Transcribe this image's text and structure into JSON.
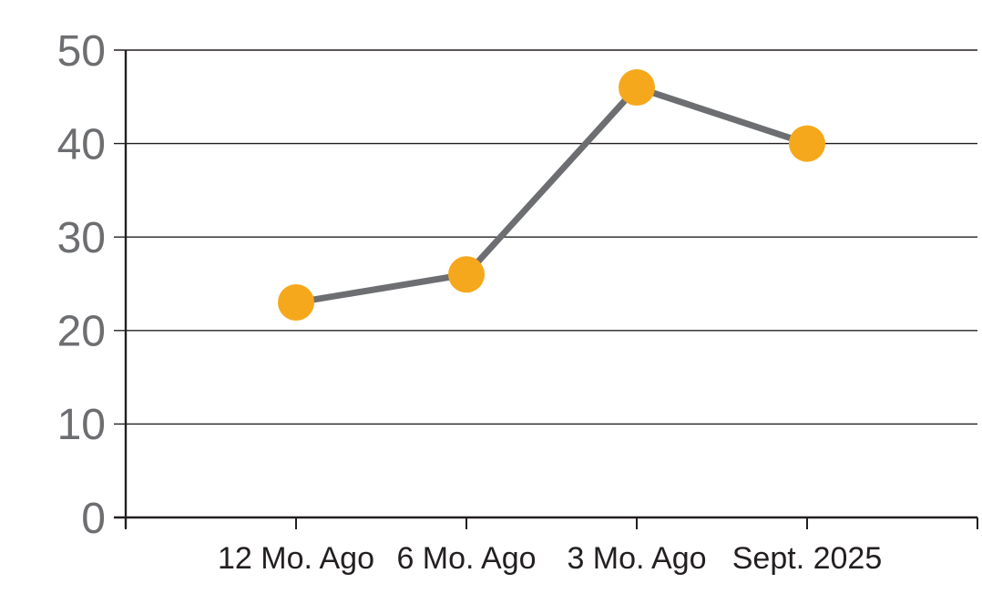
{
  "chart_data": {
    "type": "line",
    "categories": [
      "12 Mo. Ago",
      "6 Mo. Ago",
      "3 Mo. Ago",
      "Sept. 2025"
    ],
    "series": [
      {
        "name": "value",
        "values": [
          23,
          26,
          46,
          40
        ]
      }
    ],
    "title": "",
    "xlabel": "",
    "ylabel": "",
    "ylim": [
      0,
      50
    ],
    "ytick_step": 10,
    "ytick_labels": [
      "0",
      "10",
      "20",
      "30",
      "40",
      "50"
    ],
    "grid": true,
    "legend": false,
    "legend_position": "none",
    "marker_style": "circle"
  },
  "colors": {
    "background": "#ffffff",
    "line": "#6d6e71",
    "marker": "#f6a81c",
    "grid": "#231f20",
    "axis": "#231f20",
    "y_label": "#6d6e71",
    "x_label": "#231f20"
  }
}
